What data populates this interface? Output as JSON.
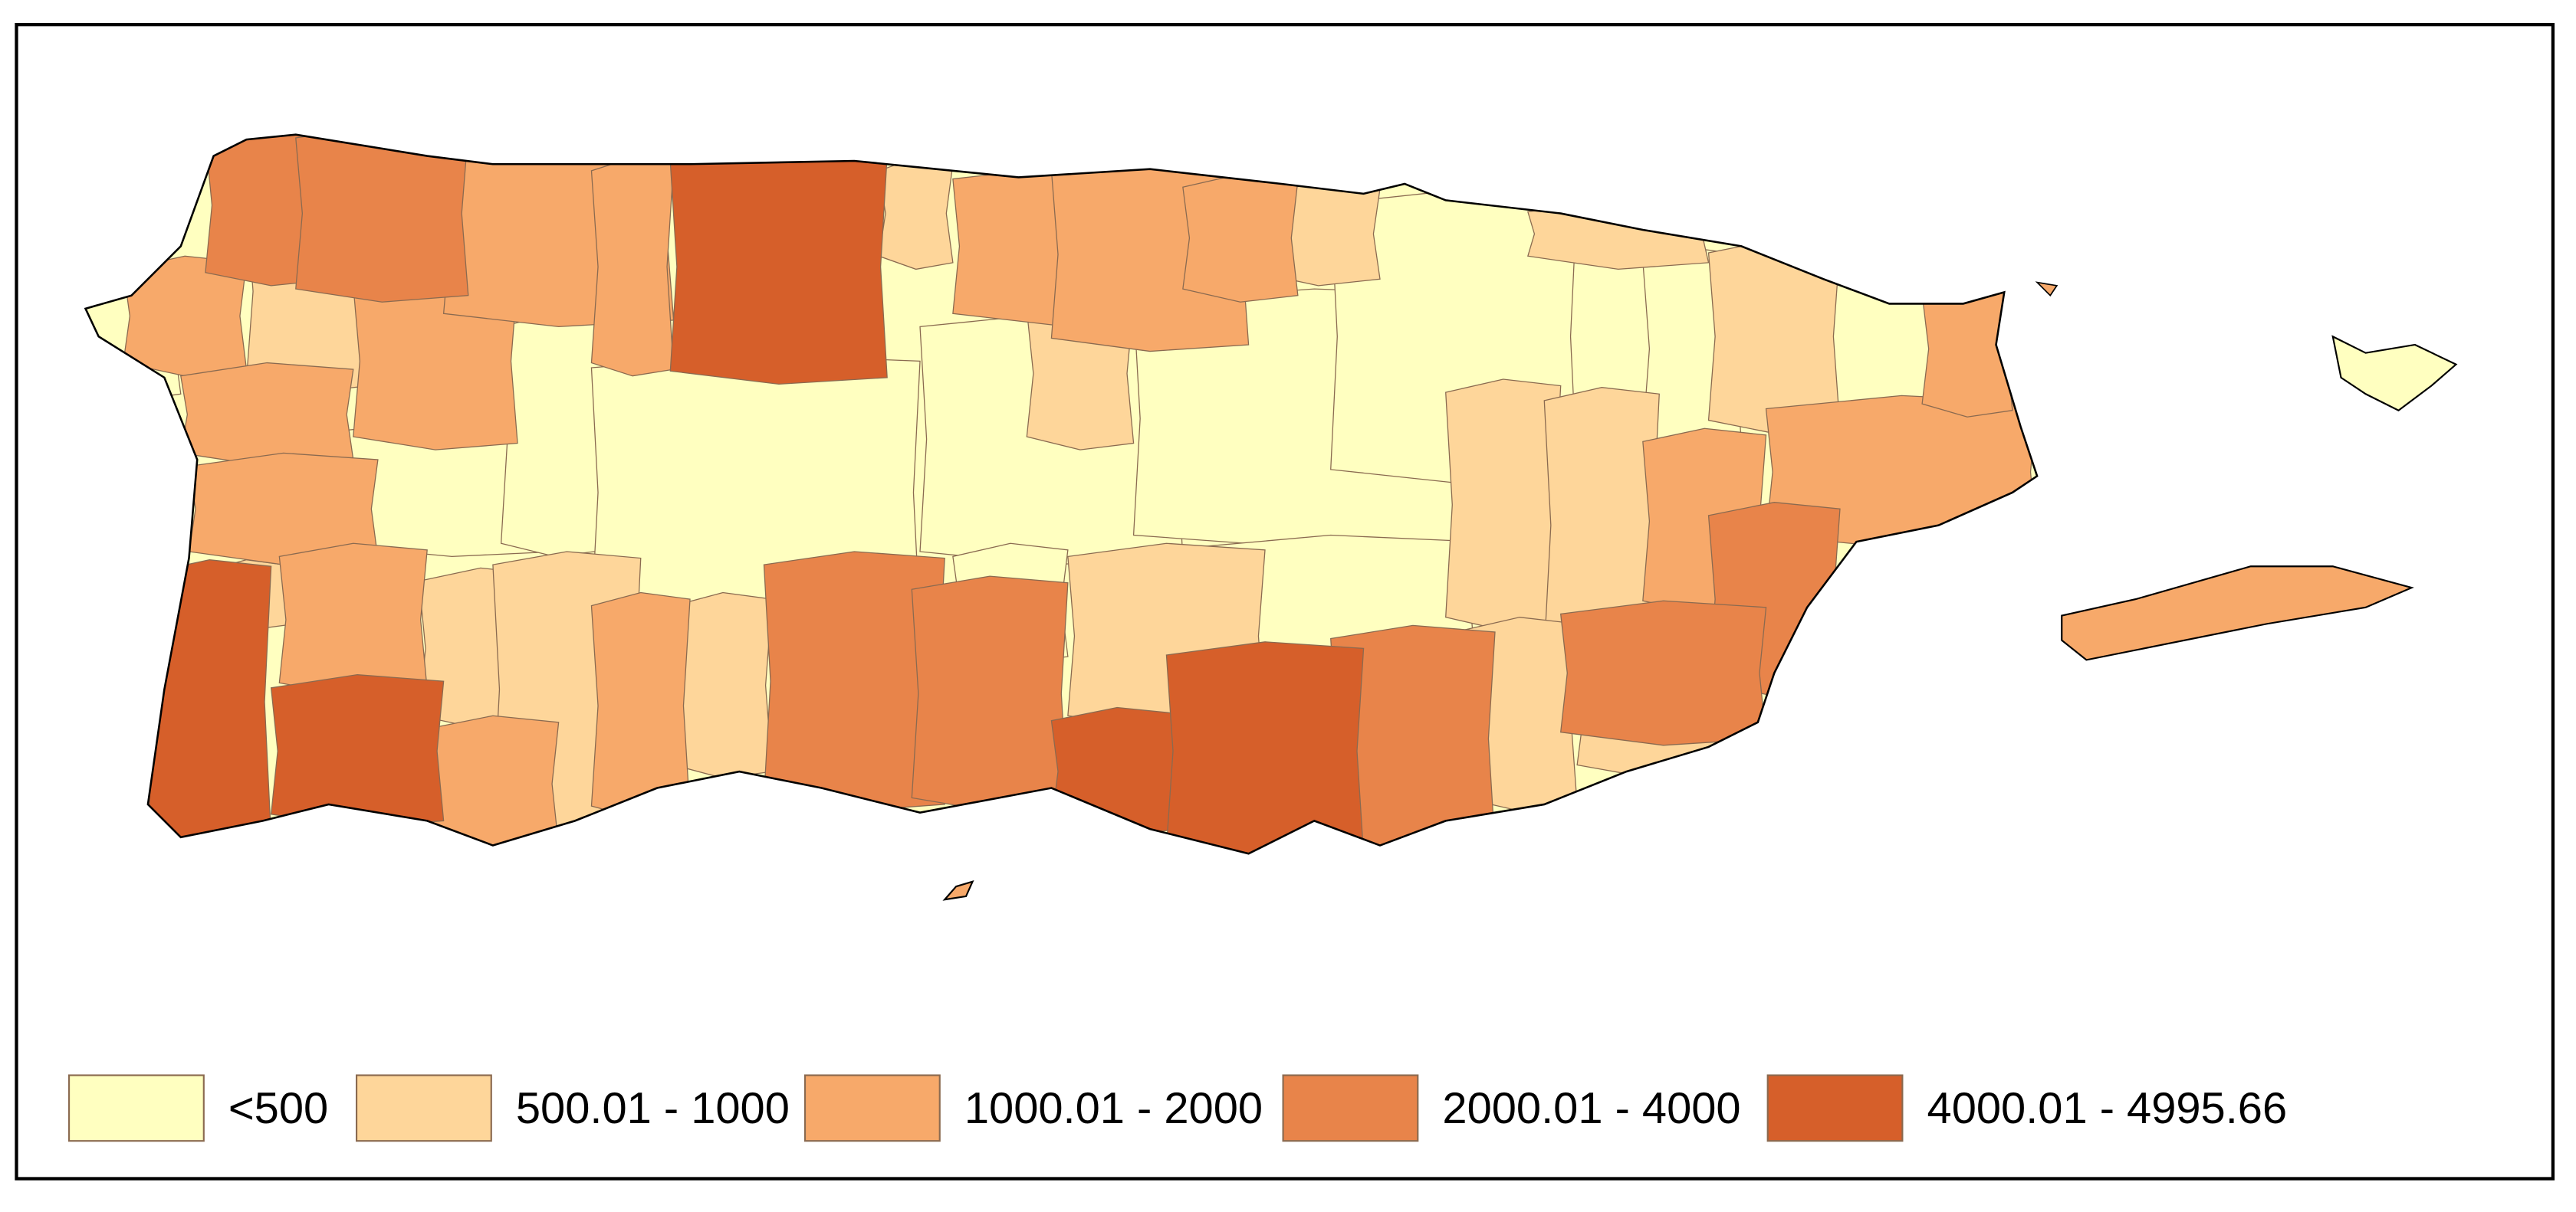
{
  "legend": {
    "items": [
      {
        "label": "<500",
        "color": "#ffffc0"
      },
      {
        "label": "500.01 - 1000",
        "color": "#fed69a"
      },
      {
        "label": "1000.01 - 2000",
        "color": "#f7a96a"
      },
      {
        "label": "2000.01 - 4000",
        "color": "#e8844a"
      },
      {
        "label": "4000.01 - 4995.66",
        "color": "#d65f2a"
      }
    ]
  }
}
